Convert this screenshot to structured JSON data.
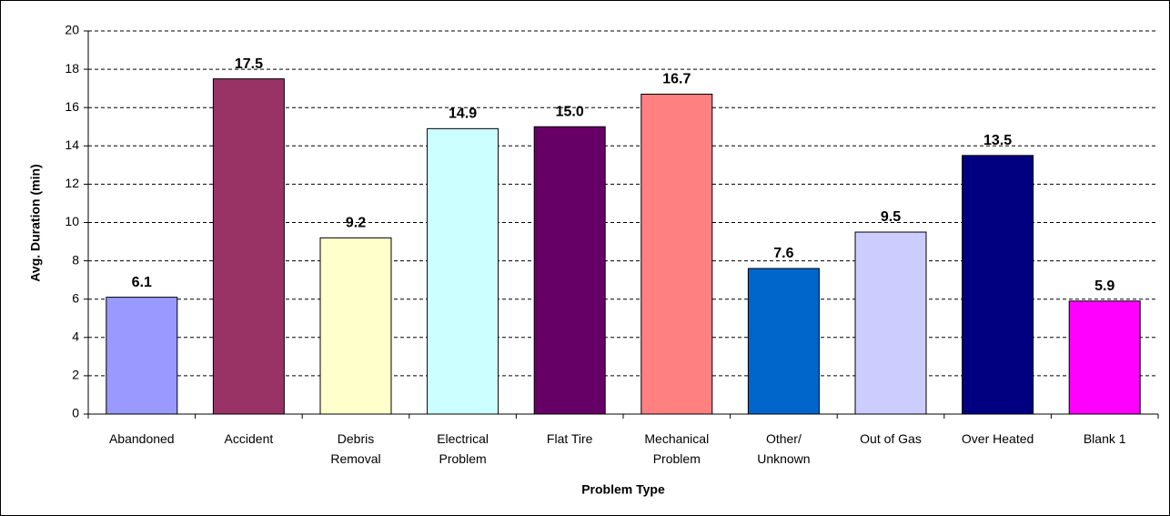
{
  "chart_data": {
    "type": "bar",
    "x_label": "Problem Type",
    "y_label": "Avg. Duration (min)",
    "categories": [
      "Abandoned",
      "Accident",
      "Debris\nRemoval",
      "Electrical\nProblem",
      "Flat Tire",
      "Mechanical\nProblem",
      "Other/\nUnknown",
      "Out of Gas",
      "Over Heated",
      "Blank 1"
    ],
    "values": [
      6.1,
      17.5,
      9.2,
      14.9,
      15.0,
      16.7,
      7.6,
      9.5,
      13.5,
      5.9
    ],
    "value_labels": [
      "6.1",
      "17.5",
      "9.2",
      "14.9",
      "15.0",
      "16.7",
      "7.6",
      "9.5",
      "13.5",
      "5.9"
    ],
    "colors": [
      "#9999ff",
      "#993366",
      "#ffffcc",
      "#ccffff",
      "#660066",
      "#ff8080",
      "#0066cc",
      "#ccccff",
      "#000080",
      "#ff00ff"
    ],
    "ylim": [
      0,
      20
    ],
    "yticks": [
      0,
      2,
      4,
      6,
      8,
      10,
      12,
      14,
      16,
      18,
      20
    ],
    "grid": true
  }
}
